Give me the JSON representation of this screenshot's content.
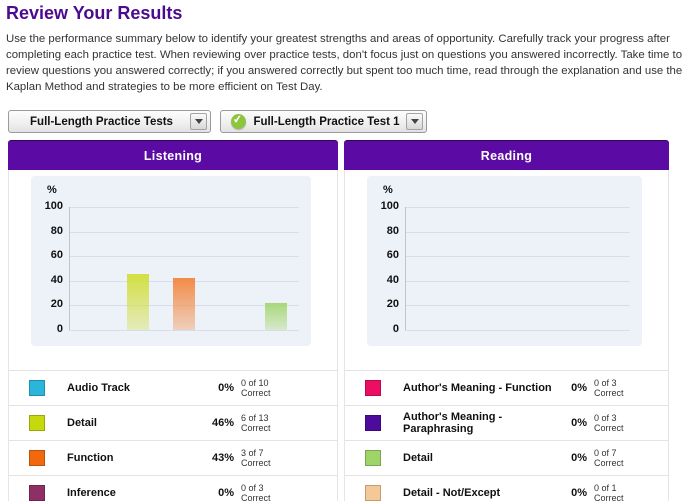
{
  "header": {
    "title": "Review Your Results",
    "description": "Use the performance summary below to identify your greatest strengths and areas of opportunity. Carefully track your progress after completing each practice test. When reviewing over practice tests, don't focus just on questions you answered incorrectly. Take time to review questions you answered correctly; if you answered correctly but spent too much time, read through the explanation and use the Kaplan Method and strategies to be more efficient on Test Day."
  },
  "filters": {
    "test_group_dropdown": {
      "value": "Full-Length Practice Tests",
      "arrow_icon": "chevron-down-icon"
    },
    "test_dropdown": {
      "value": "Full-Length Practice Test 1",
      "icon": "check-circle-icon",
      "icon_color": "#8cc63f",
      "arrow_icon": "chevron-down-icon"
    }
  },
  "colors": {
    "title_purple": "#4c0b8f",
    "panel_header_purple": "#5b0ba3",
    "chart_background": "#edf1f8",
    "gridline": "#d8dee9"
  },
  "panels": [
    {
      "title": "Listening",
      "axis_unit": "%",
      "ticks": [
        "100",
        "80",
        "60",
        "40",
        "20",
        "0"
      ],
      "legend": [
        {
          "label": "Audio Track",
          "swatch_color": "#29b6da",
          "percent": "0%",
          "correct": "0 of 10",
          "correct_word": "Correct"
        },
        {
          "label": "Detail",
          "swatch_color": "#c6d90d",
          "percent": "46%",
          "correct": "6 of 13",
          "correct_word": "Correct"
        },
        {
          "label": "Function",
          "swatch_color": "#f2690d",
          "percent": "43%",
          "correct": "3 of 7",
          "correct_word": "Correct"
        },
        {
          "label": "Inference",
          "swatch_color": "#8e3066",
          "percent": "0%",
          "correct": "0 of 3",
          "correct_word": "Correct"
        }
      ]
    },
    {
      "title": "Reading",
      "axis_unit": "%",
      "ticks": [
        "100",
        "80",
        "60",
        "40",
        "20",
        "0"
      ],
      "legend": [
        {
          "label": "Author's Meaning - Function",
          "swatch_color": "#ec0e63",
          "percent": "0%",
          "correct": "0 of 3",
          "correct_word": "Correct"
        },
        {
          "label": "Author's Meaning - Paraphrasing",
          "swatch_color": "#4e0b9b",
          "percent": "0%",
          "correct": "0 of 3",
          "correct_word": "Correct"
        },
        {
          "label": "Detail",
          "swatch_color": "#9fd468",
          "percent": "0%",
          "correct": "0 of 7",
          "correct_word": "Correct"
        },
        {
          "label": "Detail - Not/Except",
          "swatch_color": "#f5c898",
          "percent": "0%",
          "correct": "0 of 1",
          "correct_word": "Correct"
        }
      ]
    }
  ],
  "chart_data": [
    {
      "type": "bar",
      "title": "Listening",
      "ylabel": "%",
      "ylim": [
        0,
        100
      ],
      "yticks": [
        0,
        20,
        40,
        60,
        80,
        100
      ],
      "grid": true,
      "legend_position": "below",
      "categories": [
        "Audio Track",
        "Detail",
        "Function",
        "Inference",
        ""
      ],
      "values": [
        0,
        46,
        43,
        0,
        22
      ],
      "bar_colors": [
        "#29b6da",
        "#d2df42",
        "#f28c47",
        "#8e3066",
        "#a8d878"
      ],
      "note": "Fifth bar (~22%) is visible but its legend label is cut off below the screenshot edge"
    },
    {
      "type": "bar",
      "title": "Reading",
      "ylabel": "%",
      "ylim": [
        0,
        100
      ],
      "yticks": [
        0,
        20,
        40,
        60,
        80,
        100
      ],
      "grid": true,
      "legend_position": "below",
      "categories": [
        "Author's Meaning - Function",
        "Author's Meaning - Paraphrasing",
        "Detail",
        "Detail - Not/Except"
      ],
      "values": [
        0,
        0,
        0,
        0
      ],
      "bar_colors": [
        "#ec0e63",
        "#4e0b9b",
        "#9fd468",
        "#f5c898"
      ]
    }
  ]
}
